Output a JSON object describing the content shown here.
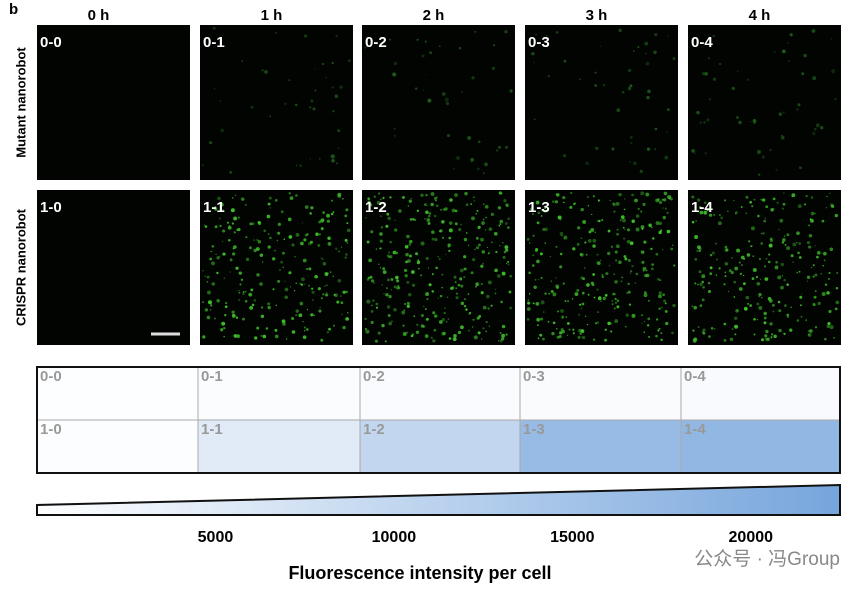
{
  "panel_label": "b",
  "column_headers": [
    "0 h",
    "1 h",
    "2 h",
    "3 h",
    "4 h"
  ],
  "row_labels": [
    "Mutant nanorobot",
    "CRISPR nanorobot"
  ],
  "image_labels": [
    [
      "0-0",
      "0-1",
      "0-2",
      "0-3",
      "0-4"
    ],
    [
      "1-0",
      "1-1",
      "1-2",
      "1-3",
      "1-4"
    ]
  ],
  "chart_data": {
    "type": "heatmap",
    "cell_labels": [
      [
        "0-0",
        "0-1",
        "0-2",
        "0-3",
        "0-4"
      ],
      [
        "1-0",
        "1-1",
        "1-2",
        "1-3",
        "1-4"
      ]
    ],
    "values": [
      [
        300,
        700,
        900,
        1000,
        1200
      ],
      [
        500,
        5000,
        10000,
        17000,
        18000
      ]
    ],
    "colors": [
      "#ffffff",
      "#76a5dc"
    ],
    "xlim": [
      0,
      22500
    ],
    "xticks": [
      5000,
      10000,
      15000,
      20000
    ],
    "xlabel": "Fluorescence intensity per cell"
  },
  "watermark": "公众号 · 冯Group"
}
